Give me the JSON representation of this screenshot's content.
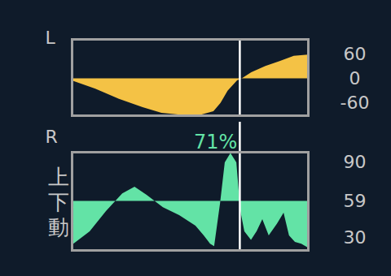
{
  "chart_data": [
    {
      "type": "area",
      "label": "L",
      "x": [
        0,
        10,
        20,
        30,
        38,
        45,
        55,
        60,
        63,
        66,
        70,
        72,
        76,
        82,
        88,
        94,
        100
      ],
      "values": [
        -5,
        -25,
        -50,
        -70,
        -84,
        -88,
        -88,
        -80,
        -60,
        -30,
        -5,
        0,
        15,
        30,
        42,
        55,
        58
      ],
      "color": "#f4c245",
      "baseline": 0,
      "xlim": [
        0,
        100
      ],
      "ylim": [
        -90,
        96
      ],
      "yticks": [
        60,
        0,
        -60
      ],
      "tick_labels": "y",
      "vline": 71
    },
    {
      "type": "area",
      "label": "R",
      "axis_label": "上下動",
      "x": [
        0.7,
        7.6,
        14.5,
        21.4,
        26.6,
        31.7,
        38.6,
        45.5,
        52.4,
        55.9,
        58.6,
        60.3,
        62.8,
        64.8,
        67.2,
        69.7,
        71.4,
        73.1,
        75.9,
        78.3,
        80.7,
        83.4,
        86.9,
        89.7,
        92,
        94.5,
        97.2,
        100
      ],
      "values": [
        25,
        34.8,
        50.9,
        65,
        70.3,
        63.8,
        54,
        47.7,
        39.3,
        31.6,
        25,
        23,
        57,
        89.6,
        97,
        89.6,
        51,
        34.8,
        28,
        35,
        44.5,
        31.6,
        41,
        49.6,
        31.6,
        26.4,
        25,
        22
      ],
      "color": "#63e3a6",
      "baseline": 59,
      "xlim": [
        0,
        100
      ],
      "ylim": [
        20,
        98
      ],
      "yticks": [
        90,
        59,
        30
      ],
      "tick_labels": "y",
      "vline": {
        "value": 71,
        "label": "71%"
      }
    }
  ]
}
